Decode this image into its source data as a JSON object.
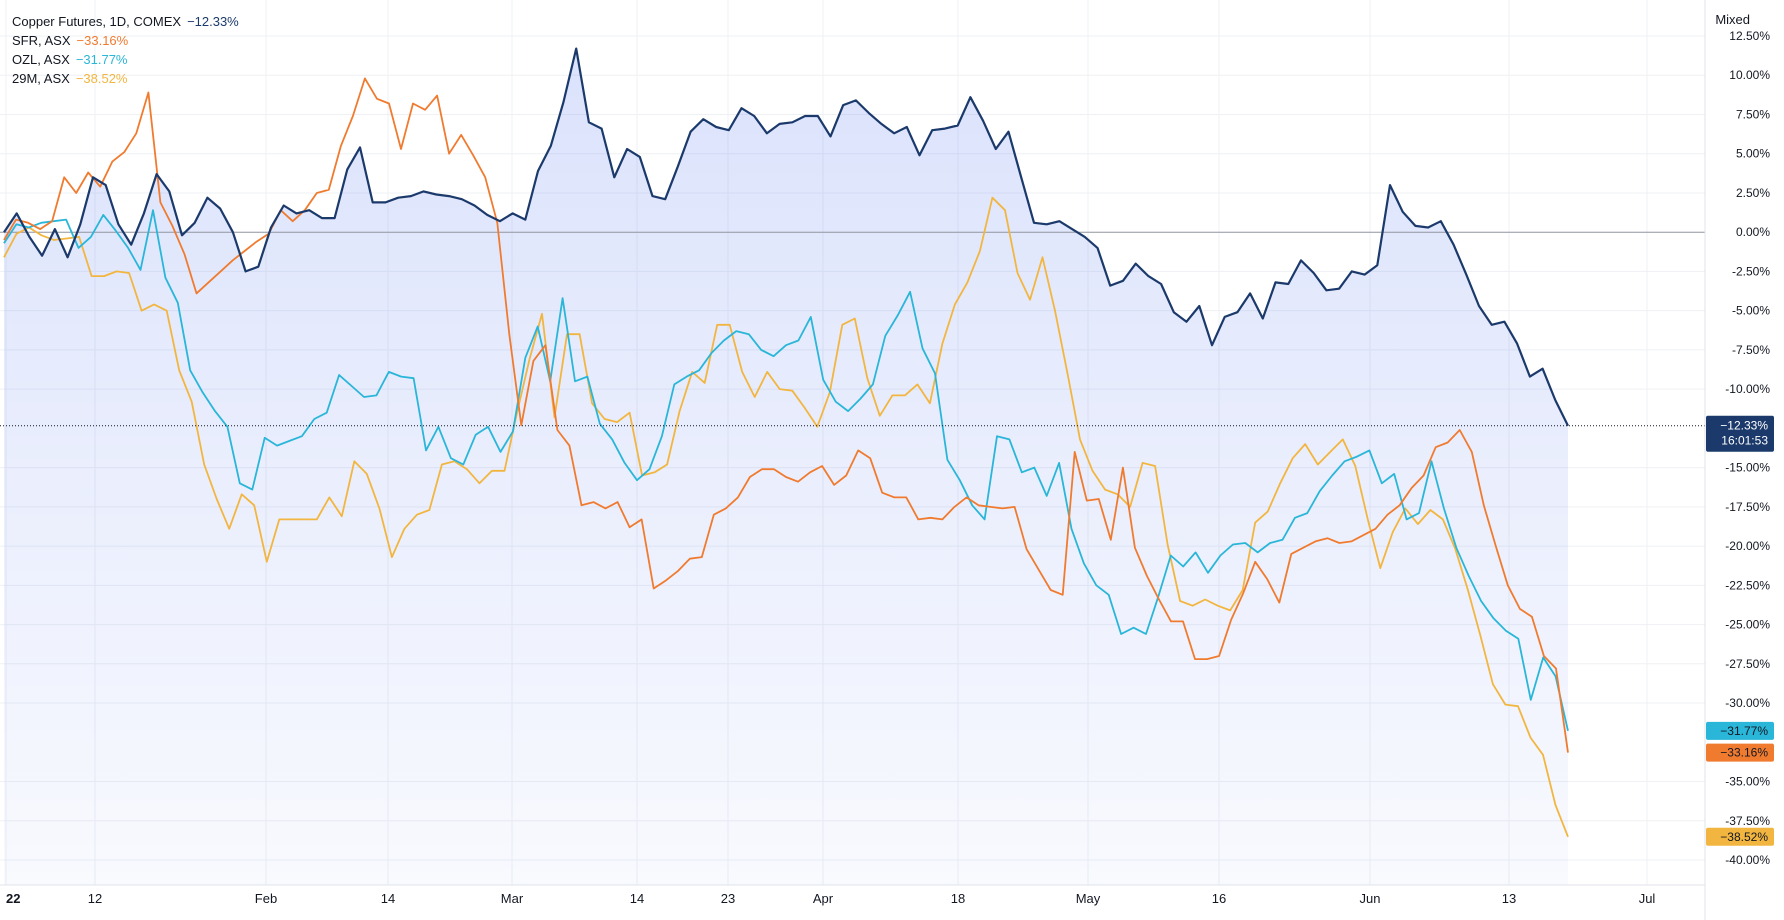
{
  "chart_data": {
    "type": "line",
    "scale_mode": "Mixed",
    "x_tick_labels": [
      "22",
      "12",
      "Feb",
      "14",
      "Mar",
      "14",
      "23",
      "Apr",
      "18",
      "May",
      "16",
      "Jun",
      "13",
      "Jul"
    ],
    "y_tick_labels": [
      "12.50%",
      "10.00%",
      "7.50%",
      "5.00%",
      "2.50%",
      "0.00%",
      "-2.50%",
      "-5.00%",
      "-7.50%",
      "-10.00%",
      "-15.00%",
      "-17.50%",
      "-20.00%",
      "-22.50%",
      "-25.00%",
      "-27.50%",
      "-30.00%",
      "-35.00%",
      "-37.50%",
      "-40.00%"
    ],
    "ylim": [
      -40,
      12.5
    ],
    "grid": true,
    "legend_position": "top-left",
    "current_time": "16:01:53",
    "series": [
      {
        "name": "Copper Futures, 1D, COMEX",
        "change_label": "−12.33%",
        "badge_label": "−12.33%",
        "color": "#1b3a6b",
        "values": [
          0,
          1.2,
          -0.3,
          -1.5,
          0.2,
          -1.6,
          0.5,
          3.5,
          3.0,
          0.5,
          -0.8,
          1.2,
          3.7,
          2.6,
          -0.2,
          0.6,
          2.2,
          1.5,
          0,
          -2.5,
          -2.2,
          0.3,
          1.7,
          1.2,
          1.4,
          0.9,
          0.9,
          4.0,
          5.4,
          1.9,
          1.9,
          2.2,
          2.3,
          2.6,
          2.4,
          2.3,
          2.1,
          1.7,
          1.1,
          0.7,
          1.2,
          0.8,
          3.9,
          5.5,
          8.3,
          11.7,
          7.0,
          6.6,
          3.5,
          5.3,
          4.8,
          2.3,
          2.1,
          4.2,
          6.4,
          7.2,
          6.7,
          6.5,
          7.9,
          7.4,
          6.3,
          6.9,
          7.0,
          7.4,
          7.4,
          6.1,
          8.1,
          8.4,
          7.6,
          6.9,
          6.3,
          6.7,
          4.9,
          6.5,
          6.6,
          6.8,
          8.6,
          7.1,
          5.3,
          6.4,
          3.5,
          0.6,
          0.5,
          0.7,
          0.2,
          -0.3,
          -1.0,
          -3.4,
          -3.1,
          -2.0,
          -2.8,
          -3.3,
          -5.1,
          -5.7,
          -4.7,
          -7.2,
          -5.4,
          -5.1,
          -3.9,
          -5.5,
          -3.2,
          -3.3,
          -1.8,
          -2.6,
          -3.7,
          -3.6,
          -2.5,
          -2.7,
          -2.1,
          3.0,
          1.3,
          0.4,
          0.3,
          0.7,
          -0.8,
          -2.7,
          -4.7,
          -5.9,
          -5.7,
          -7.1,
          -9.2,
          -8.7,
          -10.7,
          -12.33
        ]
      },
      {
        "name": "SFR, ASX",
        "change_label": "−33.16%",
        "badge_label": "−33.16%",
        "color": "#f07b2f",
        "values": [
          -0.5,
          0.8,
          0.6,
          0.2,
          0.7,
          3.5,
          2.5,
          3.8,
          2.9,
          4.5,
          5.1,
          6.3,
          8.9,
          1.9,
          0.4,
          -1.4,
          -3.9,
          -3.2,
          -2.5,
          -1.8,
          -1.2,
          -0.6,
          -0.1,
          1.4,
          0.7,
          1.4,
          2.5,
          2.7,
          5.5,
          7.4,
          9.8,
          8.5,
          8.2,
          5.3,
          8.2,
          7.8,
          8.7,
          5.0,
          6.2,
          4.9,
          3.5,
          0.6,
          -6.5,
          -12.3,
          -8.2,
          -7.2,
          -12.6,
          -13.6,
          -17.4,
          -17.2,
          -17.6,
          -17.2,
          -18.8,
          -18.3,
          -22.7,
          -22.2,
          -21.6,
          -20.8,
          -20.7,
          -18.0,
          -17.6,
          -16.9,
          -15.6,
          -15.1,
          -15.1,
          -15.6,
          -15.9,
          -15.3,
          -14.9,
          -16.1,
          -15.5,
          -13.9,
          -14.4,
          -16.6,
          -16.9,
          -16.9,
          -18.3,
          -18.2,
          -18.3,
          -17.5,
          -16.9,
          -17.4,
          -17.5,
          -17.6,
          -17.5,
          -20.2,
          -21.5,
          -22.8,
          -23.1,
          -14.0,
          -17.1,
          -17.0,
          -19.6,
          -15.0,
          -20.1,
          -21.9,
          -23.4,
          -24.8,
          -24.8,
          -27.2,
          -27.2,
          -27.0,
          -24.7,
          -23.0,
          -21.0,
          -22.1,
          -23.6,
          -20.5,
          -20.1,
          -19.7,
          -19.5,
          -19.8,
          -19.7,
          -19.3,
          -18.9,
          -18.0,
          -17.4,
          -16.3,
          -15.5,
          -13.7,
          -13.4,
          -12.6,
          -14.0,
          -17.4,
          -20.0,
          -22.5,
          -24.0,
          -24.5,
          -27.0,
          -27.8,
          -33.16
        ]
      },
      {
        "name": "OZL, ASX",
        "change_label": "−31.77%",
        "badge_label": "−31.77%",
        "color": "#29b6d8",
        "values": [
          -0.7,
          0.5,
          0.3,
          0.6,
          0.7,
          0.8,
          -1.0,
          -0.3,
          1.1,
          0.1,
          -1.0,
          -2.4,
          1.4,
          -2.9,
          -4.5,
          -8.8,
          -10.2,
          -11.4,
          -12.4,
          -16.0,
          -16.4,
          -13.1,
          -13.6,
          -13.3,
          -13.0,
          -11.9,
          -11.5,
          -9.1,
          -9.8,
          -10.5,
          -10.4,
          -8.9,
          -9.2,
          -9.3,
          -13.9,
          -12.4,
          -14.4,
          -14.8,
          -12.9,
          -12.4,
          -14.0,
          -12.7,
          -8.0,
          -6.0,
          -9.5,
          -4.2,
          -9.5,
          -9.2,
          -12.2,
          -13.2,
          -14.7,
          -15.8,
          -15.1,
          -13.0,
          -9.7,
          -9.2,
          -8.8,
          -7.7,
          -6.9,
          -6.3,
          -6.5,
          -7.5,
          -7.9,
          -7.2,
          -6.9,
          -5.4,
          -9.4,
          -10.8,
          -11.4,
          -10.6,
          -9.7,
          -6.6,
          -5.3,
          -3.8,
          -7.4,
          -9.0,
          -14.5,
          -15.8,
          -17.4,
          -18.3,
          -13.0,
          -13.2,
          -15.3,
          -15.0,
          -16.8,
          -14.7,
          -18.9,
          -21.1,
          -22.5,
          -23.1,
          -25.6,
          -25.2,
          -25.6,
          -23.2,
          -20.6,
          -21.3,
          -20.4,
          -21.7,
          -20.6,
          -19.9,
          -19.8,
          -20.4,
          -19.8,
          -19.6,
          -18.2,
          -17.9,
          -16.5,
          -15.5,
          -14.6,
          -14.3,
          -13.9,
          -16.0,
          -15.4,
          -18.3,
          -17.9,
          -14.6,
          -17.6,
          -20.1,
          -21.9,
          -23.5,
          -24.6,
          -25.4,
          -25.9,
          -29.8,
          -27.1,
          -28.3,
          -31.77
        ]
      },
      {
        "name": "29M, ASX",
        "change_label": "−38.52%",
        "badge_label": "−38.52%",
        "color": "#f2b640",
        "values": [
          -1.6,
          -0.1,
          0.3,
          -0.2,
          -0.5,
          -0.4,
          -0.3,
          -2.8,
          -2.8,
          -2.5,
          -2.6,
          -5.0,
          -4.6,
          -5.0,
          -8.8,
          -10.8,
          -14.8,
          -17.0,
          -18.9,
          -16.7,
          -17.4,
          -21.0,
          -18.3,
          -18.3,
          -18.3,
          -18.3,
          -16.9,
          -18.1,
          -14.6,
          -15.4,
          -17.6,
          -20.7,
          -18.9,
          -18.0,
          -17.7,
          -14.8,
          -14.6,
          -15.1,
          -16.0,
          -15.2,
          -15.2,
          -11.5,
          -8.1,
          -5.2,
          -11.8,
          -6.5,
          -6.5,
          -10.9,
          -11.9,
          -12.1,
          -11.5,
          -15.5,
          -15.3,
          -14.8,
          -11.4,
          -8.9,
          -9.6,
          -5.9,
          -5.9,
          -8.9,
          -10.5,
          -8.9,
          -10.0,
          -10.1,
          -11.2,
          -12.4,
          -10.2,
          -5.9,
          -5.5,
          -9.3,
          -11.7,
          -10.4,
          -10.4,
          -9.7,
          -10.9,
          -7.1,
          -4.6,
          -3.2,
          -1.2,
          2.2,
          1.4,
          -2.6,
          -4.3,
          -1.6,
          -5.0,
          -9.0,
          -13.2,
          -15.2,
          -16.4,
          -16.7,
          -17.5,
          -14.7,
          -14.9,
          -19.9,
          -23.5,
          -23.8,
          -23.4,
          -23.8,
          -24.1,
          -22.8,
          -18.5,
          -17.8,
          -16.0,
          -14.4,
          -13.5,
          -14.8,
          -14.0,
          -13.2,
          -14.9,
          -18.3,
          -21.4,
          -19.1,
          -17.6,
          -18.6,
          -17.7,
          -18.3,
          -20.2,
          -22.8,
          -25.7,
          -28.8,
          -30.1,
          -30.2,
          -32.2,
          -33.3,
          -36.5,
          -38.52
        ]
      }
    ]
  },
  "legend": [
    {
      "name": "Copper Futures, 1D, COMEX",
      "change": "−12.33%",
      "color": "#1b3a6b"
    },
    {
      "name": "SFR, ASX",
      "change": "−33.16%",
      "color": "#f07b2f"
    },
    {
      "name": "OZL, ASX",
      "change": "−31.77%",
      "color": "#29b6d8"
    },
    {
      "name": "29M, ASX",
      "change": "−38.52%",
      "color": "#f2b640"
    }
  ]
}
